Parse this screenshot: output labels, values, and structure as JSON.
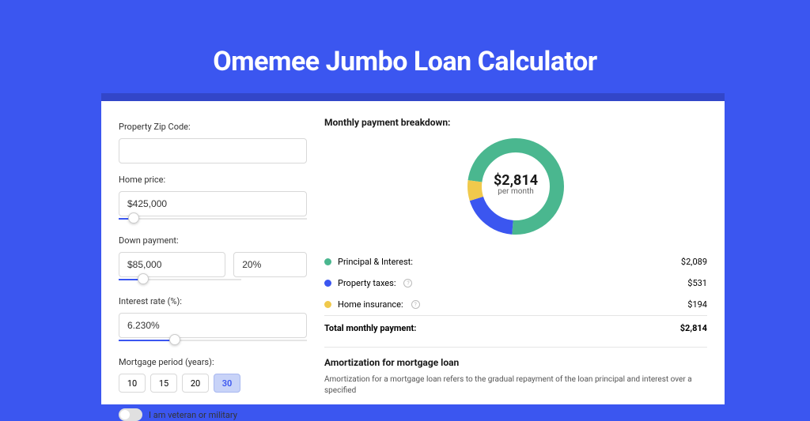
{
  "page": {
    "title": "Omemee Jumbo Loan Calculator",
    "background_color": "#3b56f0",
    "card_wrap_color": "#3246c9",
    "card_color": "#ffffff"
  },
  "form": {
    "zip": {
      "label": "Property Zip Code:",
      "value": ""
    },
    "home_price": {
      "label": "Home price:",
      "value": "$425,000",
      "slider_fill_pct": 8
    },
    "down_payment": {
      "label": "Down payment:",
      "amount": "$85,000",
      "percent": "20%",
      "slider_fill_pct": 20
    },
    "interest_rate": {
      "label": "Interest rate (%):",
      "value": "6.230%",
      "slider_fill_pct": 30
    },
    "mortgage_period": {
      "label": "Mortgage period (years):",
      "options": [
        "10",
        "15",
        "20",
        "30"
      ],
      "selected": "30"
    },
    "veteran": {
      "label": "I am veteran or military",
      "on": false
    }
  },
  "breakdown": {
    "header": "Monthly payment breakdown:",
    "donut": {
      "center_amount": "$2,814",
      "center_sub": "per month",
      "segments": [
        {
          "name": "principal_interest",
          "color": "#4ab78f",
          "fraction": 0.742
        },
        {
          "name": "property_taxes",
          "color": "#3b56f0",
          "fraction": 0.189
        },
        {
          "name": "home_insurance",
          "color": "#f0c94c",
          "fraction": 0.069
        }
      ],
      "stroke_width": 18,
      "radius": 52,
      "size": 128
    },
    "items": [
      {
        "label": "Principal & Interest:",
        "color": "#4ab78f",
        "value": "$2,089",
        "info": false
      },
      {
        "label": "Property taxes:",
        "color": "#3b56f0",
        "value": "$531",
        "info": true
      },
      {
        "label": "Home insurance:",
        "color": "#f0c94c",
        "value": "$194",
        "info": true
      }
    ],
    "total": {
      "label": "Total monthly payment:",
      "value": "$2,814"
    }
  },
  "amortization": {
    "title": "Amortization for mortgage loan",
    "text": "Amortization for a mortgage loan refers to the gradual repayment of the loan principal and interest over a specified"
  }
}
